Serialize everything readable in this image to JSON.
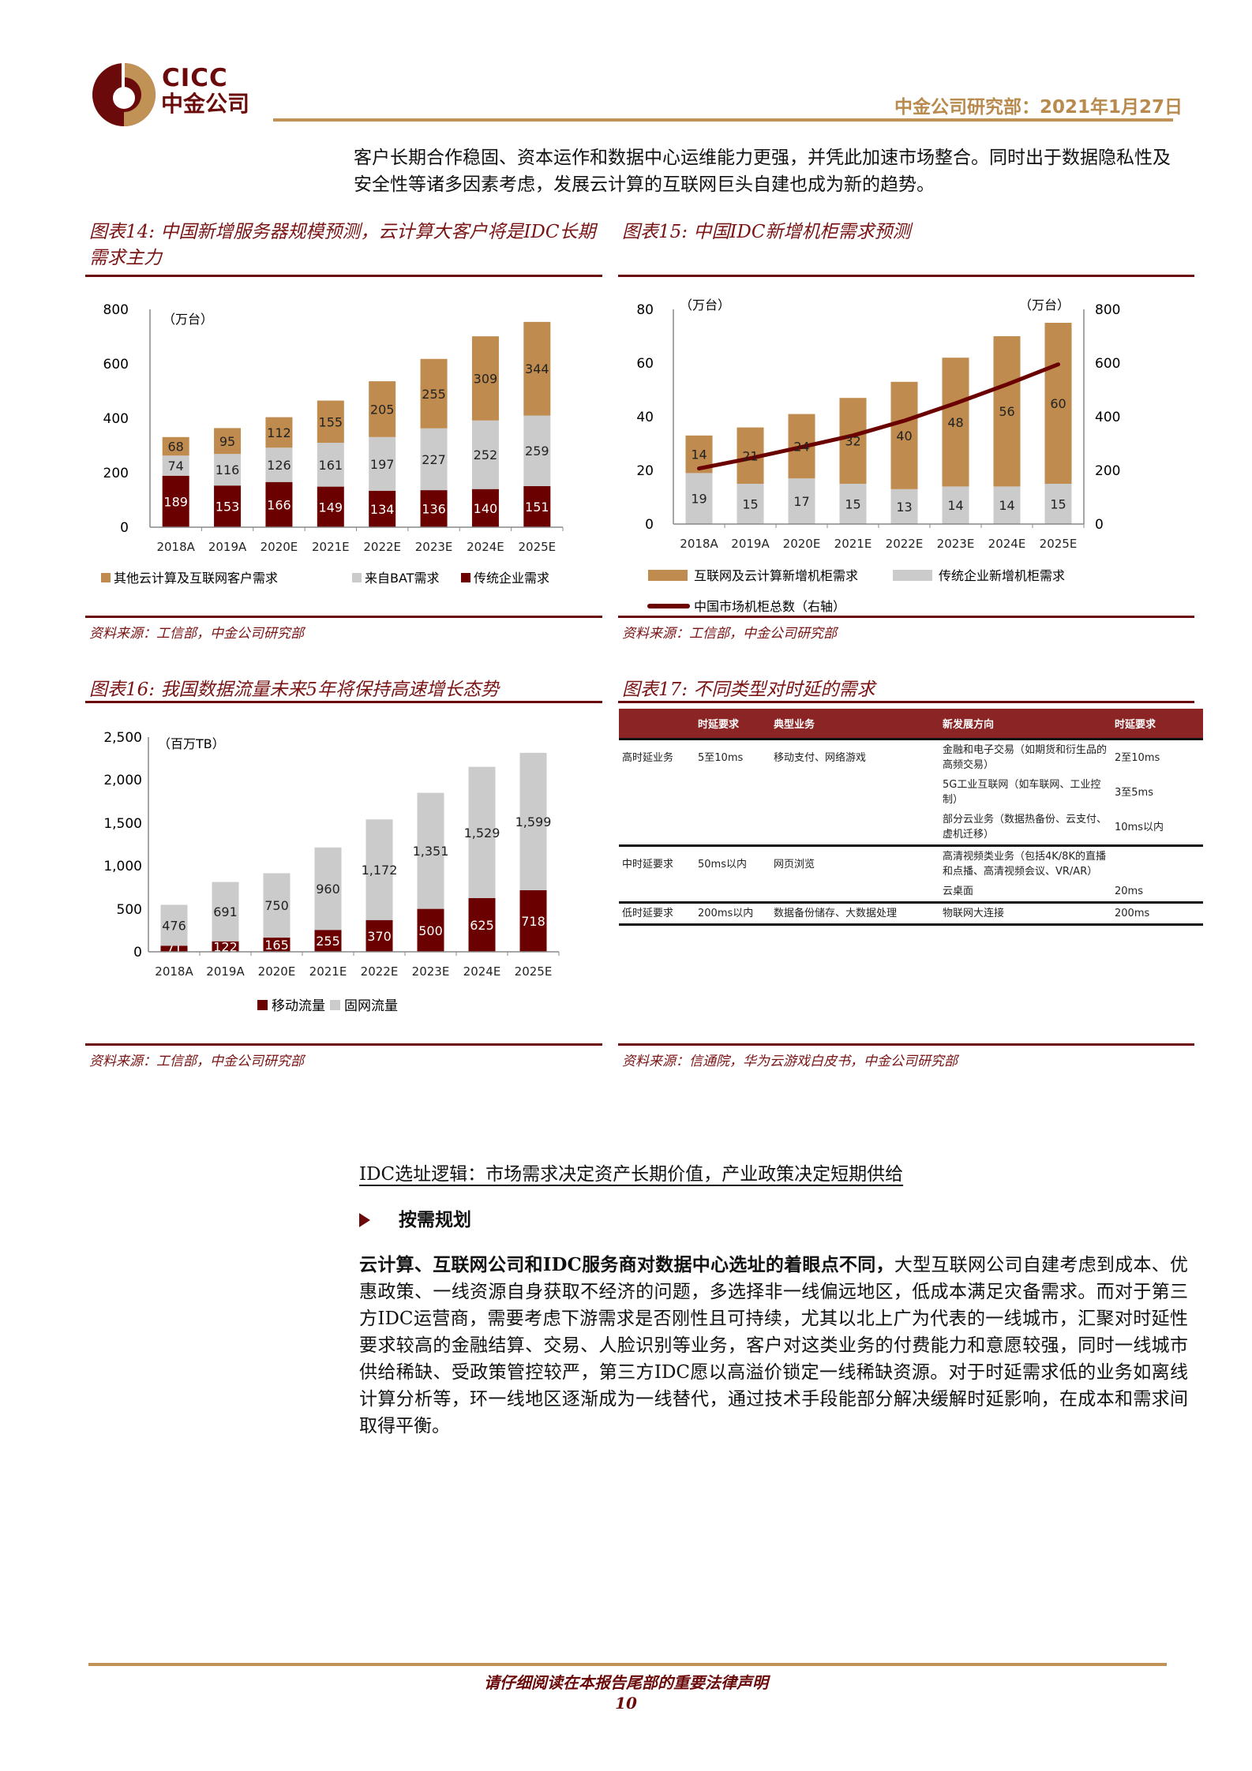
{
  "header": {
    "logo_en": "CICC",
    "logo_zh": "中金公司",
    "dept_date": "中金公司研究部：2021年1月27日",
    "colors": {
      "brand_dark": "#6b0a0a",
      "brand_gold": "#c09256"
    }
  },
  "intro": "客户长期合作稳固、资本运作和数据中心运维能力更强，并凭此加速市场整合。同时出于数据隐私性及安全性等诸多因素考虑，发展云计算的互联网巨头自建也成为新的趋势。",
  "figures": {
    "fig14": {
      "title": "图表14: 中国新增服务器规模预测，云计算大客户将是IDC长期需求主力",
      "unit": "（万台）",
      "source": "资料来源：工信部，中金公司研究部",
      "legend": [
        "其他云计算及互联网客户需求",
        "来自BAT需求",
        "传统企业需求"
      ]
    },
    "fig15": {
      "title": "图表15: 中国IDC新增机柜需求预测",
      "unit_left": "（万台）",
      "unit_right": "（万台）",
      "source": "资料来源：工信部，中金公司研究部",
      "legend": [
        "互联网及云计算新增机柜需求",
        "传统企业新增机柜需求",
        "中国市场机柜总数（右轴）"
      ]
    },
    "fig16": {
      "title": "图表16: 我国数据流量未来5年将保持高速增长态势",
      "unit": "（百万TB）",
      "source": "资料来源：工信部，中金公司研究部",
      "legend": [
        "移动流量",
        "固网流量"
      ]
    },
    "fig17": {
      "title": "图表17: 不同类型对时延的需求",
      "source": "资料来源：信通院，华为云游戏白皮书，中金公司研究部",
      "headers": [
        "",
        "时延要求",
        "典型业务",
        "新发展方向",
        "时延要求"
      ],
      "rows": [
        {
          "type": "高时延业务",
          "latency": "5至10ms",
          "typical": "移动支付、网络游戏",
          "direction": "金融和电子交易（如期货和衍生品的高频交易）",
          "new_latency": "2至10ms"
        },
        {
          "type": "",
          "latency": "",
          "typical": "",
          "direction": "5G工业互联网（如车联网、工业控制）",
          "new_latency": "3至5ms"
        },
        {
          "type": "",
          "latency": "",
          "typical": "",
          "direction": "部分云业务（数据热备份、云支付、虚机迁移）",
          "new_latency": "10ms以内"
        },
        {
          "type": "中时延要求",
          "latency": "50ms以内",
          "typical": "网页浏览",
          "direction": "高清视频类业务（包括4K/8K的直播和点播、高清视频会议、VR/AR）",
          "new_latency": ""
        },
        {
          "type": "",
          "latency": "",
          "typical": "",
          "direction": "云桌面",
          "new_latency": "20ms"
        },
        {
          "type": "低时延要求",
          "latency": "200ms以内",
          "typical": "数据备份储存、大数据处理",
          "direction": "物联网大连接",
          "new_latency": "200ms"
        }
      ]
    }
  },
  "chart_data": [
    {
      "id": "fig14",
      "type": "bar",
      "stacked": true,
      "title": "中国新增服务器规模预测，云计算大客户将是IDC长期需求主力",
      "ylabel": "万台",
      "ylim": [
        0,
        800
      ],
      "yticks": [
        0,
        200,
        400,
        600,
        800
      ],
      "categories": [
        "2018A",
        "2019A",
        "2020E",
        "2021E",
        "2022E",
        "2023E",
        "2024E",
        "2025E"
      ],
      "series": [
        {
          "name": "传统企业需求",
          "color": "#6b0000",
          "values": [
            189,
            153,
            166,
            149,
            134,
            136,
            140,
            151
          ]
        },
        {
          "name": "来自BAT需求",
          "color": "#cbcbcb",
          "values": [
            74,
            116,
            126,
            161,
            197,
            227,
            252,
            259
          ]
        },
        {
          "name": "其他云计算及互联网客户需求",
          "color": "#bf8b4e",
          "values": [
            68,
            95,
            112,
            155,
            205,
            255,
            309,
            344
          ]
        }
      ],
      "legend_position": "bottom"
    },
    {
      "id": "fig15",
      "type": "bar",
      "stacked": true,
      "title": "中国IDC新增机柜需求预测",
      "ylabel": "万台",
      "ylim": [
        0,
        80
      ],
      "yticks": [
        0,
        20,
        40,
        60,
        80
      ],
      "y2label": "万台",
      "y2lim": [
        0,
        800
      ],
      "y2ticks": [
        0,
        200,
        400,
        600,
        800
      ],
      "categories": [
        "2018A",
        "2019A",
        "2020E",
        "2021E",
        "2022E",
        "2023E",
        "2024E",
        "2025E"
      ],
      "series": [
        {
          "name": "传统企业新增机柜需求",
          "color": "#cbcbcb",
          "values": [
            19,
            15,
            17,
            15,
            13,
            14,
            14,
            15
          ]
        },
        {
          "name": "互联网及云计算新增机柜需求",
          "color": "#bf8b4e",
          "values": [
            14,
            21,
            24,
            32,
            40,
            48,
            56,
            60
          ]
        },
        {
          "name": "中国市场机柜总数（右轴）",
          "type": "line",
          "axis": "right",
          "color": "#6b0000",
          "values": [
            207,
            245,
            287,
            330,
            385,
            450,
            520,
            595
          ]
        }
      ],
      "legend_position": "bottom"
    },
    {
      "id": "fig16",
      "type": "bar",
      "stacked": true,
      "title": "我国数据流量未来5年将保持高速增长态势",
      "ylabel": "百万TB",
      "ylim": [
        0,
        2500
      ],
      "yticks": [
        0,
        500,
        1000,
        1500,
        2000,
        2500
      ],
      "ytick_labels": [
        "0",
        "500",
        "1,000",
        "1,500",
        "2,000",
        "2,500"
      ],
      "categories": [
        "2018A",
        "2019A",
        "2020E",
        "2021E",
        "2022E",
        "2023E",
        "2024E",
        "2025E"
      ],
      "series": [
        {
          "name": "移动流量",
          "color": "#6b0000",
          "values": [
            71,
            122,
            165,
            255,
            370,
            500,
            625,
            718
          ]
        },
        {
          "name": "固网流量",
          "color": "#cbcbcb",
          "values": [
            476,
            691,
            750,
            960,
            1172,
            1351,
            1529,
            1599
          ]
        }
      ],
      "value_labels": {
        "移动流量": [
          "71",
          "122",
          "165",
          "255",
          "370",
          "500",
          "625",
          "718"
        ],
        "固网流量": [
          "476",
          "691",
          "750",
          "960",
          "1,172",
          "1,351",
          "1,529",
          "1,599"
        ]
      },
      "legend_position": "bottom"
    }
  ],
  "section": {
    "heading": "IDC选址逻辑：市场需求决定资产长期价值，产业政策决定短期供给",
    "bullet": "按需规划",
    "para_bold": "云计算、互联网公司和IDC服务商对数据中心选址的着眼点不同，",
    "para_rest": "大型互联网公司自建考虑到成本、优惠政策、一线资源自身获取不经济的问题，多选择非一线偏远地区，低成本满足灾备需求。而对于第三方IDC运营商，需要考虑下游需求是否刚性且可持续，尤其以北上广为代表的一线城市，汇聚对时延性要求较高的金融结算、交易、人脸识别等业务，客户对这类业务的付费能力和意愿较强，同时一线城市供给稀缺、受政策管控较严，第三方IDC愿以高溢价锁定一线稀缺资源。对于时延需求低的业务如离线计算分析等，环一线地区逐渐成为一线替代，通过技术手段能部分解决缓解时延影响，在成本和需求间取得平衡。"
  },
  "footer": {
    "note": "请仔细阅读在本报告尾部的重要法律声明",
    "page": "10"
  }
}
